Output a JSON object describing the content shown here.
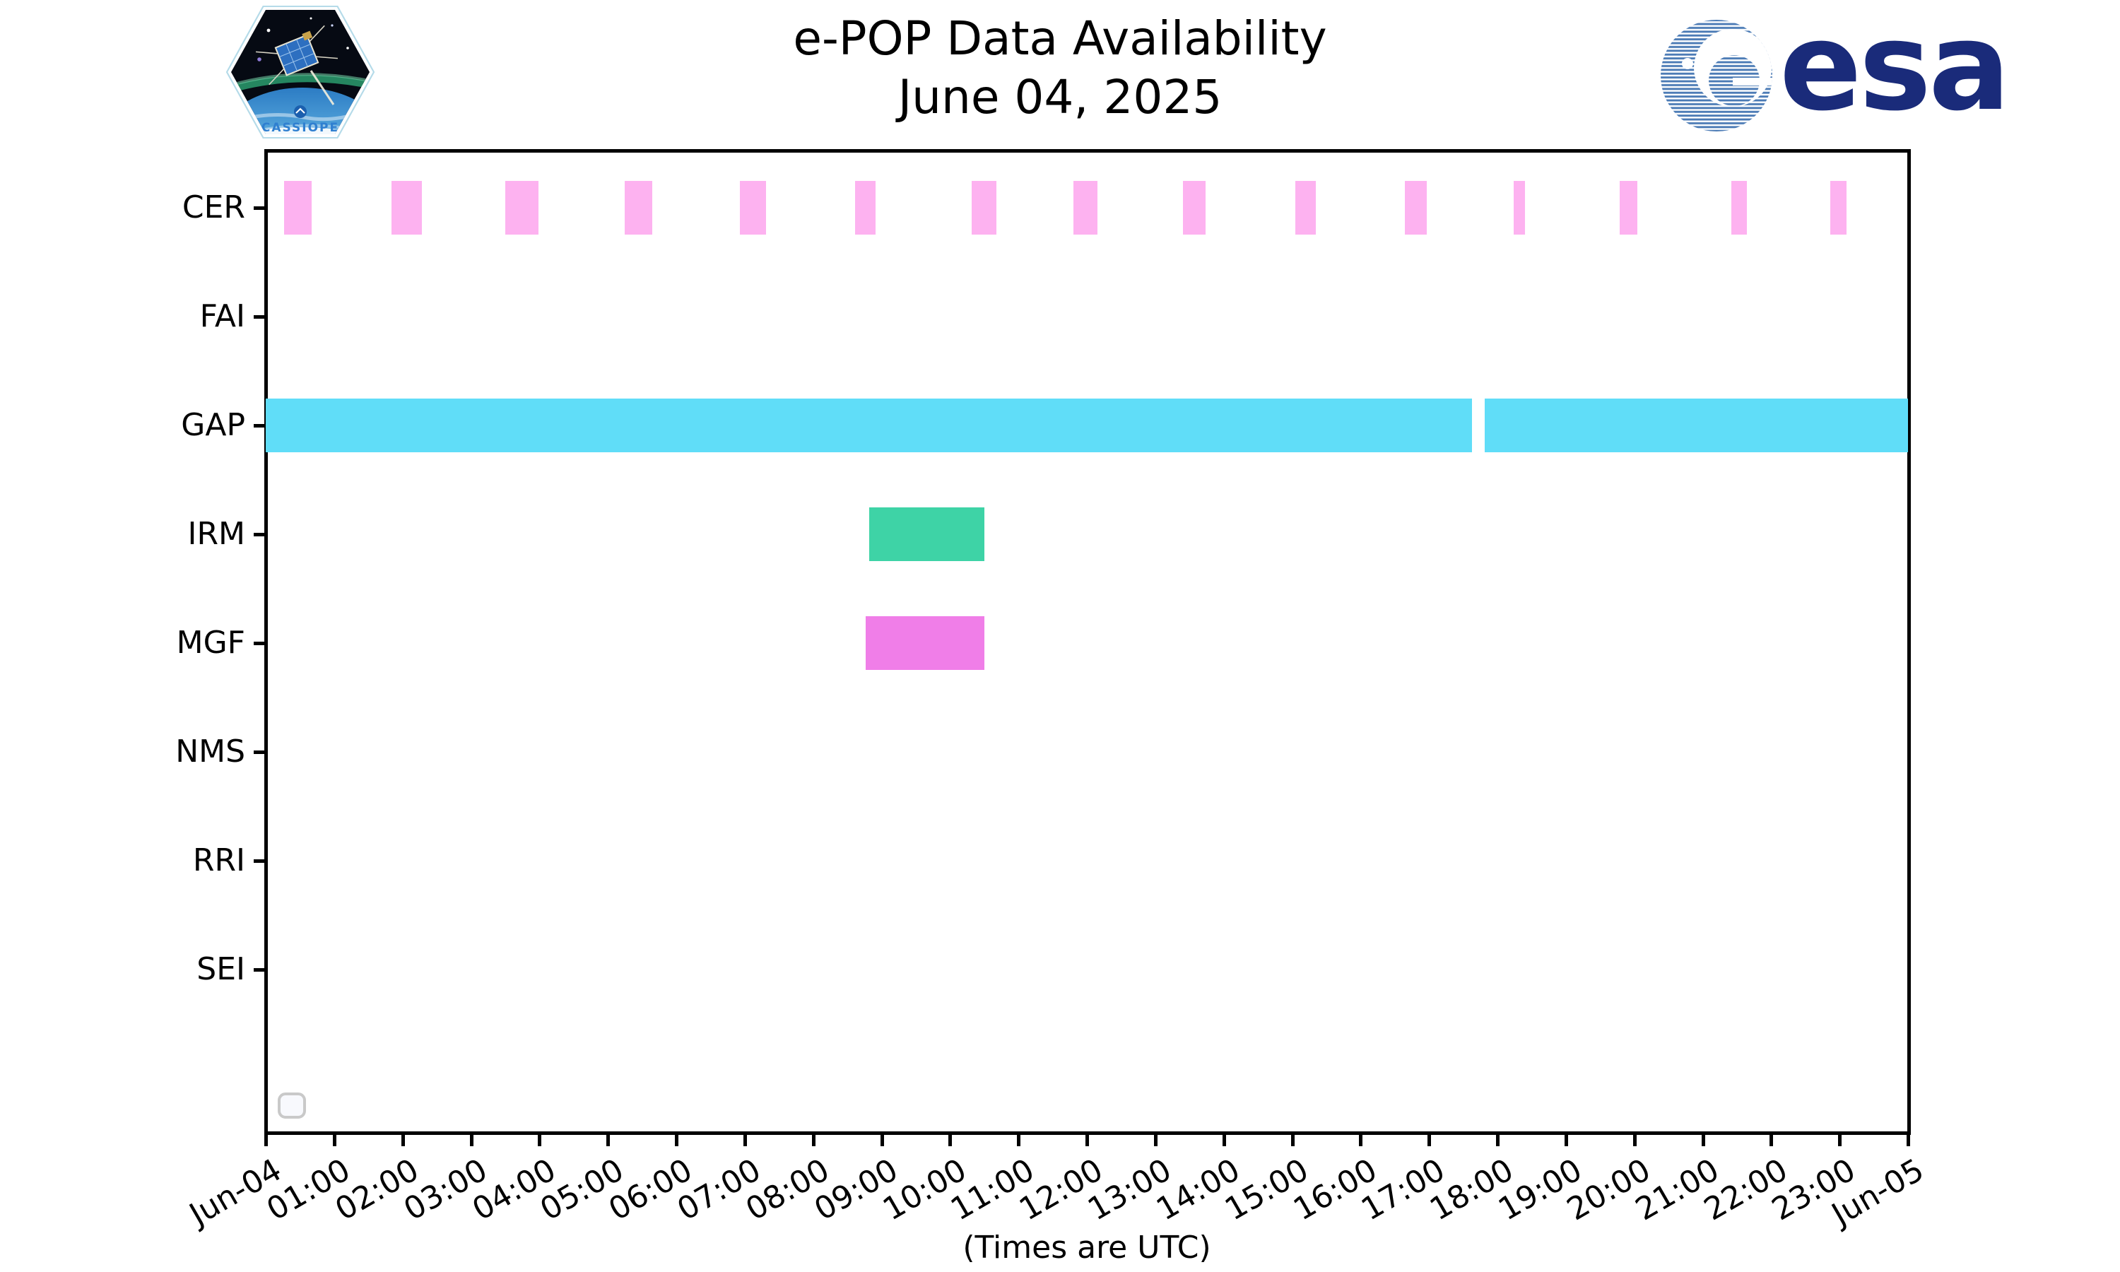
{
  "header": {
    "title": "e-POP Data Availability",
    "date": "June 04, 2025",
    "cassiope_patch_text": "CASSIOPE",
    "esa_wordmark": "esa"
  },
  "colors": {
    "cer_pink": "#fdb2f0",
    "gap_cyan": "#60ddf8",
    "irm_green": "#3ed3a6",
    "mgf_magenta": "#f07ee8",
    "esa_blue": "#1a2b7a",
    "esa_globe_blue": "#4a7ab5",
    "axis_black": "#000000"
  },
  "chart_data": {
    "type": "bar",
    "variant": "availability-timeline",
    "title": "e-POP Data Availability",
    "subtitle": "June 04, 2025",
    "xlabel": "(Times are UTC)",
    "x_range_hours": [
      0,
      24
    ],
    "x_tick_labels": [
      "Jun-04",
      "01:00",
      "02:00",
      "03:00",
      "04:00",
      "05:00",
      "06:00",
      "07:00",
      "08:00",
      "09:00",
      "10:00",
      "11:00",
      "12:00",
      "13:00",
      "14:00",
      "15:00",
      "16:00",
      "17:00",
      "18:00",
      "19:00",
      "20:00",
      "21:00",
      "22:00",
      "23:00",
      "Jun-05"
    ],
    "grid": false,
    "legend": {
      "visible": true,
      "entries": []
    },
    "rows": [
      {
        "label": "CER",
        "color": "#fdb2f0",
        "intervals": [
          [
            "00:16",
            "00:40"
          ],
          [
            "01:50",
            "02:17"
          ],
          [
            "03:30",
            "03:59"
          ],
          [
            "05:15",
            "05:39"
          ],
          [
            "06:56",
            "07:19"
          ],
          [
            "08:37",
            "08:55"
          ],
          [
            "10:19",
            "10:41"
          ],
          [
            "11:48",
            "12:09"
          ],
          [
            "13:24",
            "13:44"
          ],
          [
            "15:03",
            "15:21"
          ],
          [
            "16:39",
            "16:58"
          ],
          [
            "18:14",
            "18:24"
          ],
          [
            "19:47",
            "20:03"
          ],
          [
            "21:25",
            "21:39"
          ],
          [
            "22:52",
            "23:06"
          ]
        ]
      },
      {
        "label": "FAI",
        "color": null,
        "intervals": []
      },
      {
        "label": "GAP",
        "color": "#60ddf8",
        "intervals": [
          [
            "00:00",
            "17:38"
          ],
          [
            "17:49",
            "24:00"
          ]
        ]
      },
      {
        "label": "IRM",
        "color": "#3ed3a6",
        "intervals": [
          [
            "08:49",
            "10:30"
          ]
        ]
      },
      {
        "label": "MGF",
        "color": "#f07ee8",
        "intervals": [
          [
            "08:46",
            "10:30"
          ]
        ]
      },
      {
        "label": "NMS",
        "color": null,
        "intervals": []
      },
      {
        "label": "RRI",
        "color": null,
        "intervals": []
      },
      {
        "label": "SEI",
        "color": null,
        "intervals": []
      }
    ],
    "footnote": "(Times are UTC)"
  }
}
